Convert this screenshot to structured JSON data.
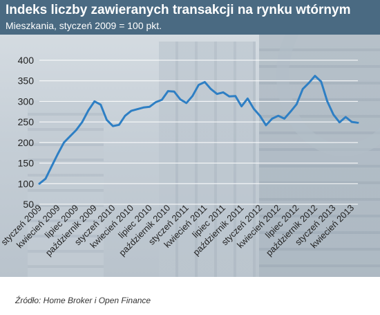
{
  "header": {
    "title": "Indeks liczby zawieranych transakcji na rynku wtórnym",
    "subtitle": "Mieszkania, styczeń 2009 = 100 pkt."
  },
  "source": "Źródło: Home Broker i Open Finance",
  "colors": {
    "header_bg": "#4a6a82",
    "line": "#2e7fc4",
    "grid": "#ffffff"
  },
  "chart_data": {
    "type": "line",
    "title": "Indeks liczby zawieranych transakcji na rynku wtórnym",
    "subtitle": "Mieszkania, styczeń 2009 = 100 pkt.",
    "ylim": [
      50,
      400
    ],
    "yticks": [
      50,
      100,
      150,
      200,
      250,
      300,
      350,
      400
    ],
    "grid": true,
    "xtick_labels": [
      "styczeń 2009",
      "kwiecień 2009",
      "lipiec 2009",
      "październik 2009",
      "styczeń 2010",
      "kwiecień 2010",
      "lipiec 2010",
      "październik 2010",
      "styczeń 2011",
      "kwiecień 2011",
      "lipiec 2011",
      "październik 2011",
      "styczeń 2012",
      "kwiecień 2012",
      "lipiec 2012",
      "październik 2012",
      "styczeń 2013",
      "kwiecień 2013"
    ],
    "xtick_every": 3,
    "series": [
      {
        "values": [
          100,
          112,
          142,
          172,
          200,
          215,
          230,
          250,
          278,
          300,
          292,
          255,
          240,
          243,
          265,
          277,
          281,
          285,
          287,
          298,
          304,
          325,
          324,
          305,
          296,
          313,
          340,
          347,
          330,
          318,
          322,
          312,
          313,
          288,
          307,
          282,
          265,
          242,
          258,
          265,
          258,
          275,
          293,
          330,
          345,
          362,
          348,
          300,
          268,
          249,
          262,
          250,
          248
        ]
      }
    ]
  }
}
